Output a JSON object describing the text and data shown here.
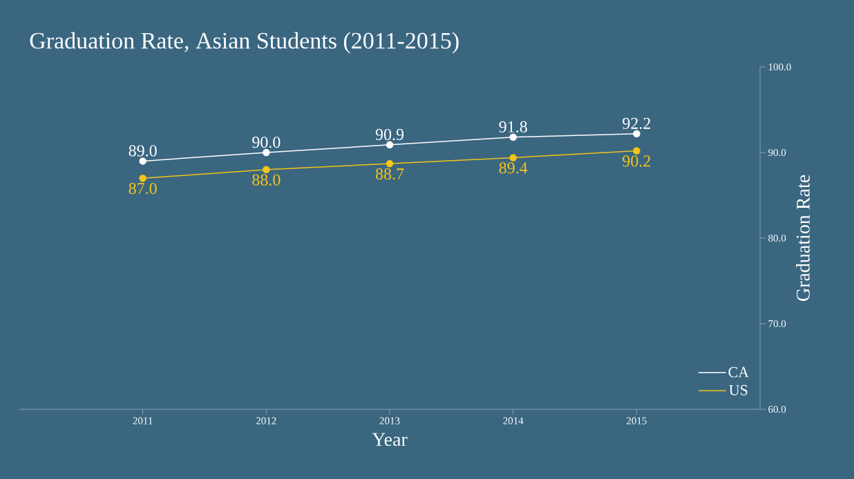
{
  "chart_data": {
    "type": "line",
    "title": "Graduation Rate, Asian Students (2011-2015)",
    "xlabel": "Year",
    "ylabel": "Graduation Rate",
    "x": [
      2011,
      2012,
      2013,
      2014,
      2015
    ],
    "series": [
      {
        "name": "CA",
        "color": "#ffffff",
        "values": [
          89.0,
          90.0,
          90.9,
          91.8,
          92.2
        ],
        "value_labels": [
          "89.0",
          "90.0",
          "90.9",
          "91.8",
          "92.2"
        ]
      },
      {
        "name": "US",
        "color": "#f5c518",
        "values": [
          87.0,
          88.0,
          88.7,
          89.4,
          90.2
        ],
        "value_labels": [
          "87.0",
          "88.0",
          "88.7",
          "89.4",
          "90.2"
        ]
      }
    ],
    "xlim": [
      2010,
      2016
    ],
    "xticks": [
      2011,
      2012,
      2013,
      2014,
      2015
    ],
    "ylim": [
      60,
      100
    ],
    "yticks": [
      {
        "value": 60,
        "label": "60.0"
      },
      {
        "value": 70,
        "label": "70.0"
      },
      {
        "value": 80,
        "label": "80.0"
      },
      {
        "value": 90,
        "label": "90.0"
      },
      {
        "value": 100,
        "label": "100.0"
      }
    ],
    "legend": "bottom right",
    "marker": "circle",
    "line_style": "solid",
    "grid": false
  }
}
